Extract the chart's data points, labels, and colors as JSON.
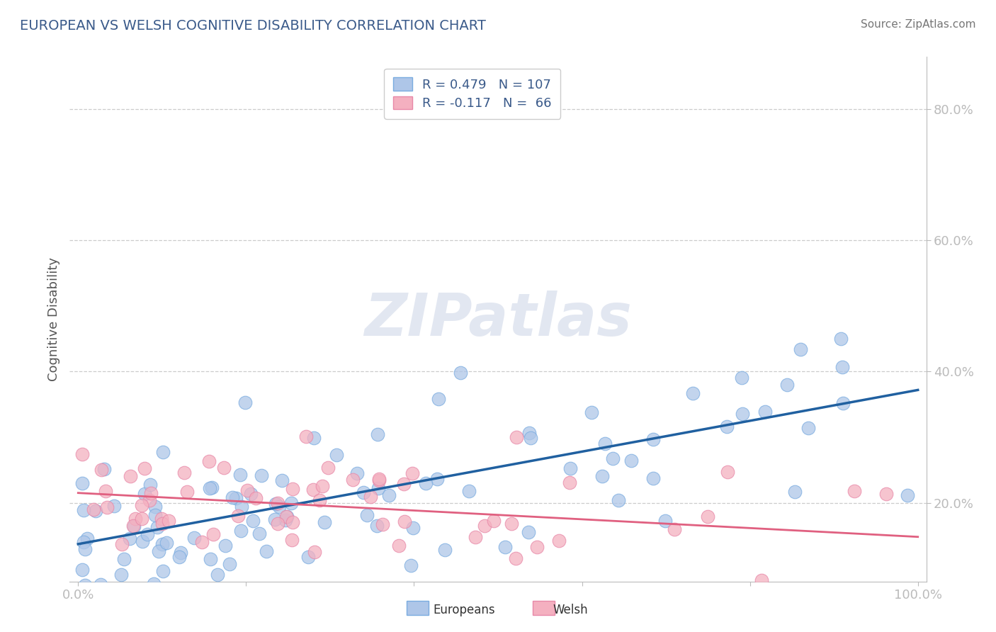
{
  "title": "EUROPEAN VS WELSH COGNITIVE DISABILITY CORRELATION CHART",
  "source": "Source: ZipAtlas.com",
  "ylabel": "Cognitive Disability",
  "title_color": "#3a5a8a",
  "source_color": "#777777",
  "axis_color": "#bbbbbb",
  "grid_color": "#cccccc",
  "background_color": "#ffffff",
  "blue_color": "#2060a0",
  "pink_color": "#e06080",
  "blue_scatter_color": "#aec6e8",
  "pink_scatter_color": "#f4b0c0",
  "blue_edge_color": "#7aace0",
  "pink_edge_color": "#e888a8",
  "blue_line_start_x": 0.0,
  "blue_line_start_y": 0.137,
  "blue_line_end_x": 1.0,
  "blue_line_end_y": 0.372,
  "pink_line_start_x": 0.0,
  "pink_line_start_y": 0.215,
  "pink_line_end_x": 1.0,
  "pink_line_end_y": 0.148,
  "xlim": [
    -0.01,
    1.01
  ],
  "ylim": [
    0.08,
    0.88
  ],
  "blue_N": 107,
  "pink_N": 66,
  "blue_R": 0.479,
  "pink_R": -0.117,
  "noise_scale_blue": 0.072,
  "noise_scale_pink": 0.055,
  "marker_size": 180,
  "watermark_text": "ZIPatlas",
  "watermark_color": "#d0d8e8",
  "watermark_alpha": 0.6,
  "watermark_fontsize": 60
}
